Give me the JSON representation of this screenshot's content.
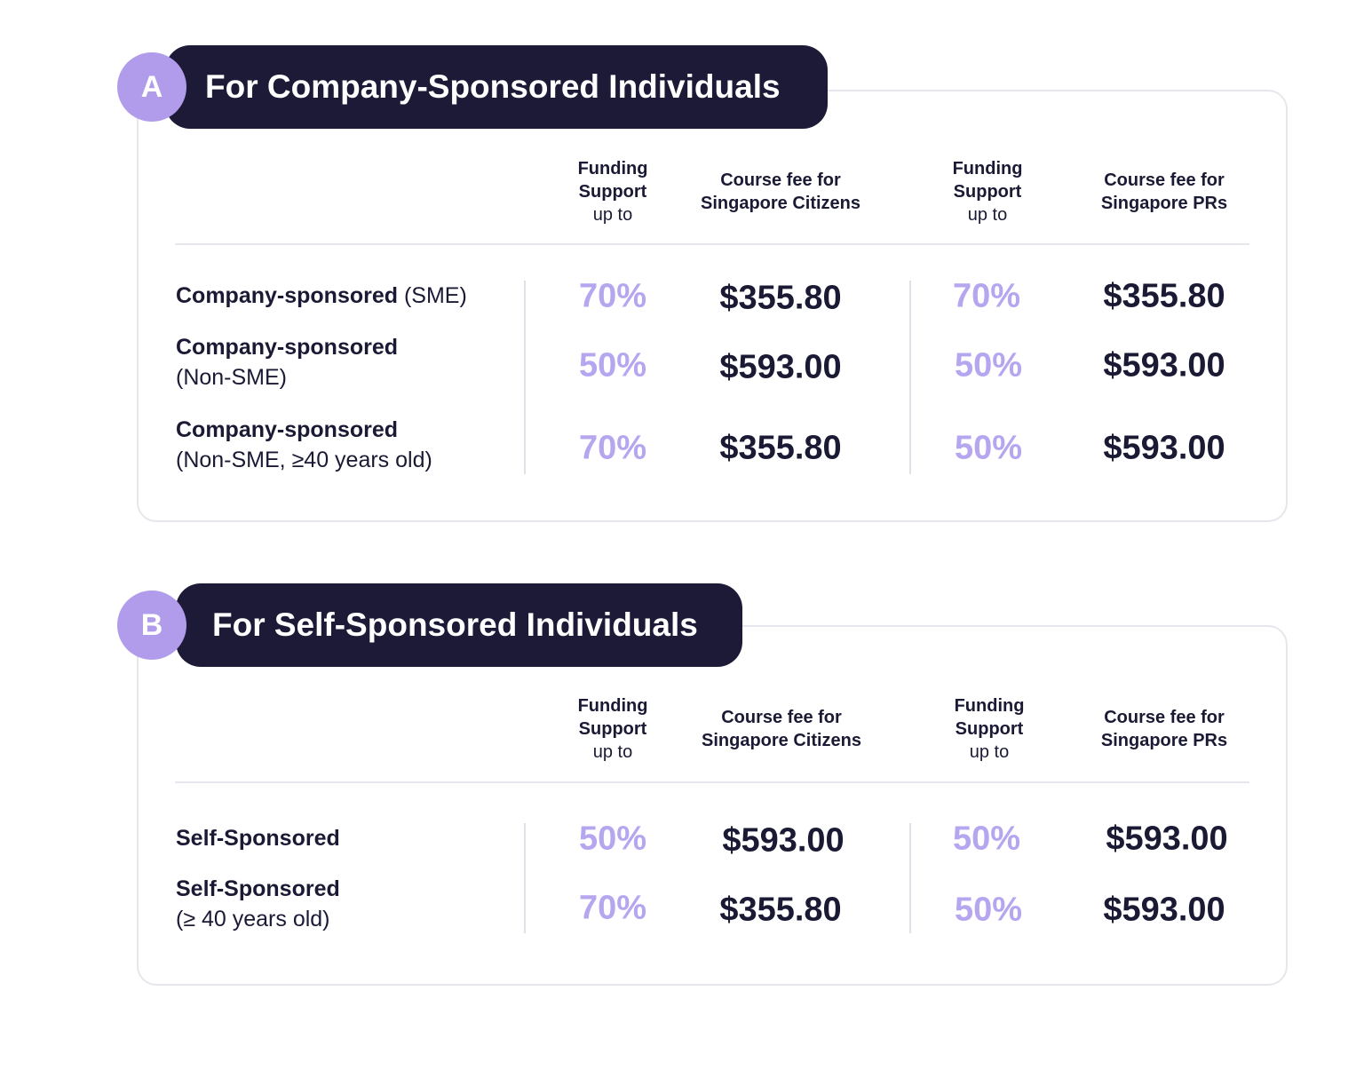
{
  "colors": {
    "dark_navy": "#1c1a37",
    "lavender": "#b09cea",
    "percent_text": "#b6a6ef",
    "border": "#e6e6ec"
  },
  "sections": [
    {
      "badge": "A",
      "title": "For Company-Sponsored Individuals",
      "headers": {
        "funding_1": [
          "Funding",
          "Support",
          "up to"
        ],
        "fee_citizens": [
          "Course fee for",
          "Singapore Citizens"
        ],
        "funding_2": [
          "Funding",
          "Support",
          "up to"
        ],
        "fee_prs": [
          "Course fee for",
          "Singapore PRs"
        ]
      },
      "rows": [
        {
          "label_bold": "Company-sponsored",
          "label_rest": " (SME)",
          "citizen_support": "70%",
          "citizen_fee": "$355.80",
          "pr_support": "70%",
          "pr_fee": "$355.80"
        },
        {
          "label_bold": "Company-sponsored",
          "label_rest": "(Non-SME)",
          "citizen_support": "50%",
          "citizen_fee": "$593.00",
          "pr_support": "50%",
          "pr_fee": "$593.00"
        },
        {
          "label_bold": "Company-sponsored",
          "label_rest": "(Non-SME, ≥40 years old)",
          "citizen_support": "70%",
          "citizen_fee": "$355.80",
          "pr_support": "50%",
          "pr_fee": "$593.00"
        }
      ]
    },
    {
      "badge": "B",
      "title": "For Self-Sponsored Individuals",
      "headers": {
        "funding_1": [
          "Funding",
          "Support",
          "up to"
        ],
        "fee_citizens": [
          "Course fee for",
          "Singapore Citizens"
        ],
        "funding_2": [
          "Funding",
          "Support",
          "up to"
        ],
        "fee_prs": [
          "Course fee for",
          "Singapore PRs"
        ]
      },
      "rows": [
        {
          "label_bold": "Self-Sponsored",
          "label_rest": "",
          "citizen_support": "50%",
          "citizen_fee": "$593.00",
          "pr_support": "50%",
          "pr_fee": "$593.00"
        },
        {
          "label_bold": "Self-Sponsored",
          "label_rest": "(≥ 40 years old)",
          "citizen_support": "70%",
          "citizen_fee": "$355.80",
          "pr_support": "50%",
          "pr_fee": "$593.00"
        }
      ]
    }
  ]
}
